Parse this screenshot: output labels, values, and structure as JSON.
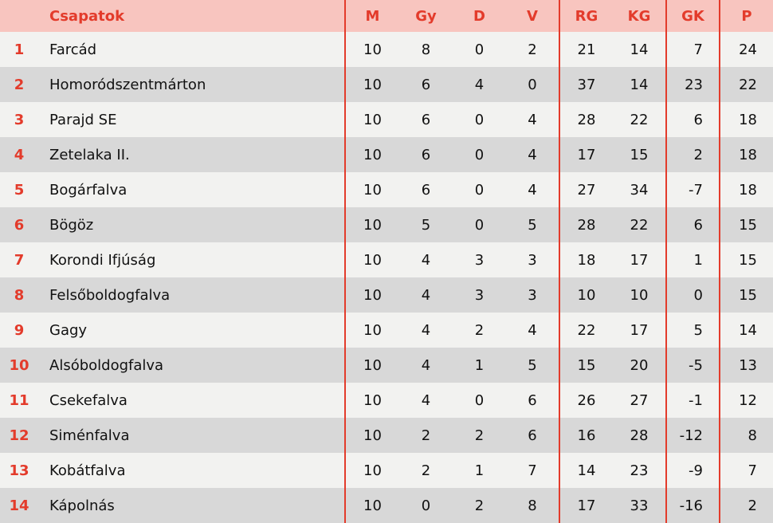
{
  "headers": {
    "rank": "",
    "team": "Csapatok",
    "m": "M",
    "gy": "Gy",
    "d": "D",
    "v": "V",
    "rg": "RG",
    "kg": "KG",
    "gk": "GK",
    "p": "P"
  },
  "colors": {
    "accent": "#e33b2b",
    "header_bg": "#f8c5bf",
    "row_light": "#f2f2f0",
    "row_dark": "#d8d8d8"
  },
  "rows": [
    {
      "rank": "1",
      "team": "Farcád",
      "m": "10",
      "gy": "8",
      "d": "0",
      "v": "2",
      "rg": "21",
      "kg": "14",
      "gk": "7",
      "p": "24"
    },
    {
      "rank": "2",
      "team": "Homoródszentmárton",
      "m": "10",
      "gy": "6",
      "d": "4",
      "v": "0",
      "rg": "37",
      "kg": "14",
      "gk": "23",
      "p": "22"
    },
    {
      "rank": "3",
      "team": "Parajd SE",
      "m": "10",
      "gy": "6",
      "d": "0",
      "v": "4",
      "rg": "28",
      "kg": "22",
      "gk": "6",
      "p": "18"
    },
    {
      "rank": "4",
      "team": "Zetelaka II.",
      "m": "10",
      "gy": "6",
      "d": "0",
      "v": "4",
      "rg": "17",
      "kg": "15",
      "gk": "2",
      "p": "18"
    },
    {
      "rank": "5",
      "team": "Bogárfalva",
      "m": "10",
      "gy": "6",
      "d": "0",
      "v": "4",
      "rg": "27",
      "kg": "34",
      "gk": "-7",
      "p": "18"
    },
    {
      "rank": "6",
      "team": "Bögöz",
      "m": "10",
      "gy": "5",
      "d": "0",
      "v": "5",
      "rg": "28",
      "kg": "22",
      "gk": "6",
      "p": "15"
    },
    {
      "rank": "7",
      "team": "Korondi Ifjúság",
      "m": "10",
      "gy": "4",
      "d": "3",
      "v": "3",
      "rg": "18",
      "kg": "17",
      "gk": "1",
      "p": "15"
    },
    {
      "rank": "8",
      "team": "Felsőboldogfalva",
      "m": "10",
      "gy": "4",
      "d": "3",
      "v": "3",
      "rg": "10",
      "kg": "10",
      "gk": "0",
      "p": "15"
    },
    {
      "rank": "9",
      "team": "Gagy",
      "m": "10",
      "gy": "4",
      "d": "2",
      "v": "4",
      "rg": "22",
      "kg": "17",
      "gk": "5",
      "p": "14"
    },
    {
      "rank": "10",
      "team": "Alsóboldogfalva",
      "m": "10",
      "gy": "4",
      "d": "1",
      "v": "5",
      "rg": "15",
      "kg": "20",
      "gk": "-5",
      "p": "13"
    },
    {
      "rank": "11",
      "team": "Csekefalva",
      "m": "10",
      "gy": "4",
      "d": "0",
      "v": "6",
      "rg": "26",
      "kg": "27",
      "gk": "-1",
      "p": "12"
    },
    {
      "rank": "12",
      "team": "Siménfalva",
      "m": "10",
      "gy": "2",
      "d": "2",
      "v": "6",
      "rg": "16",
      "kg": "28",
      "gk": "-12",
      "p": "8"
    },
    {
      "rank": "13",
      "team": "Kobátfalva",
      "m": "10",
      "gy": "2",
      "d": "1",
      "v": "7",
      "rg": "14",
      "kg": "23",
      "gk": "-9",
      "p": "7"
    },
    {
      "rank": "14",
      "team": "Kápolnás",
      "m": "10",
      "gy": "0",
      "d": "2",
      "v": "8",
      "rg": "17",
      "kg": "33",
      "gk": "-16",
      "p": "2"
    }
  ]
}
